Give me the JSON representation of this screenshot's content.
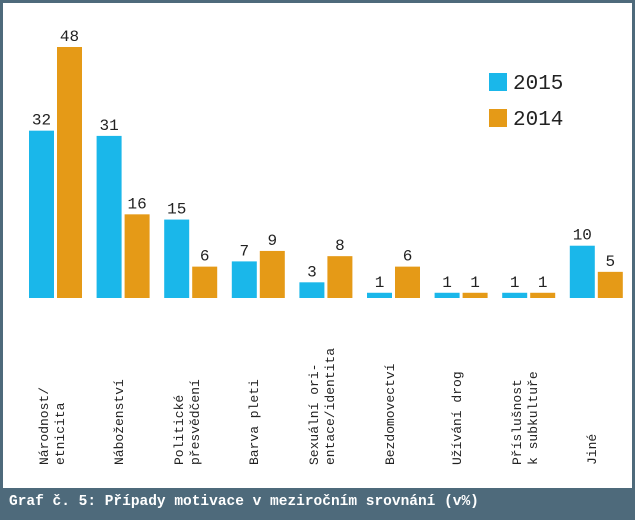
{
  "chart_data": {
    "type": "bar",
    "caption": "Graf č. 5: Případy motivace v meziročním srovnání (v%)",
    "categories": [
      "Národnost/\netnicita",
      "Náboženství",
      "Politické\npřesvědčení",
      "Barva pleti",
      "Sexuální ori-\nentace/identita",
      "Bezdomovectví",
      "Užívání drog",
      "Příslušnost\nk subkultuře",
      "Jiné"
    ],
    "series": [
      {
        "name": "2015",
        "color": "#1ab7ea",
        "values": [
          32,
          31,
          15,
          7,
          3,
          1,
          1,
          1,
          10
        ]
      },
      {
        "name": "2014",
        "color": "#e59a17",
        "values": [
          48,
          16,
          6,
          9,
          8,
          6,
          1,
          1,
          5
        ]
      }
    ],
    "legend": "top-right"
  }
}
